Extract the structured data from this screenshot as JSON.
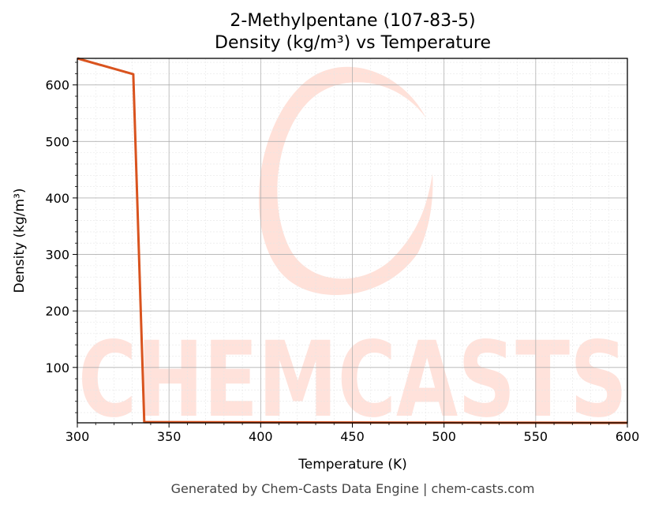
{
  "chart_data": {
    "type": "line",
    "title": "2-Methylpentane (107-83-5)",
    "subtitle": "Density (kg/m³) vs Temperature",
    "xlabel": "Temperature (K)",
    "ylabel": "Density (kg/m³)",
    "xlim": [
      300,
      600
    ],
    "ylim": [
      2,
      647
    ],
    "xticks": [
      300,
      350,
      400,
      450,
      500,
      550,
      600
    ],
    "yticks": [
      100,
      200,
      300,
      400,
      500,
      600
    ],
    "grid": true,
    "series": [
      {
        "color": "#d9531e",
        "x": [
          300,
          330.5,
          336.5,
          340,
          400,
          450,
          500,
          550,
          600
        ],
        "y": [
          647,
          619,
          3.3,
          3.2,
          2.8,
          2.5,
          2.3,
          2.1,
          2.0
        ]
      }
    ]
  },
  "watermark": {
    "text": "CHEMCASTS",
    "color": "#ffd9d0"
  },
  "footer": {
    "text": "Generated by Chem-Casts Data Engine | chem-casts.com"
  }
}
